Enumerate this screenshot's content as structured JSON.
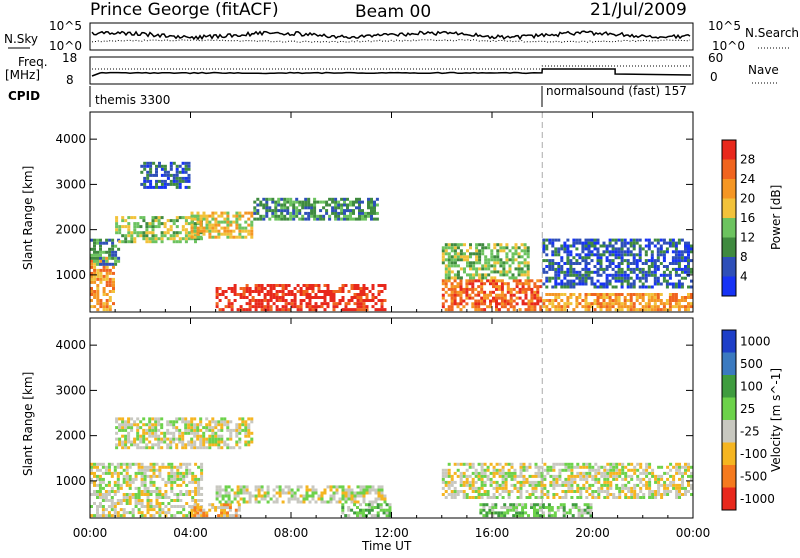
{
  "header": {
    "station": "Prince George (fitACF)",
    "beam": "Beam 00",
    "date": "21/Jul/2009"
  },
  "top_panels": {
    "nsky_label": "N.Sky",
    "nsky_ticks": [
      "10^5",
      "10^0"
    ],
    "nsearch_label": "N.Search",
    "nsearch_ticks": [
      "10^5",
      "10^0"
    ],
    "freq_label_1": "Freq.",
    "freq_label_2": "[MHz]",
    "freq_ticks": [
      "18",
      "8"
    ],
    "nave_label": "Nave",
    "nave_ticks": [
      "60",
      "0"
    ],
    "cpid_label": "CPID",
    "cpid_segments": [
      {
        "name": "themis 3300",
        "start_hour": 0
      },
      {
        "name": "normalsound (fast) 157",
        "start_hour": 18
      }
    ]
  },
  "chart_data": [
    {
      "type": "heatmap",
      "title": "",
      "xlabel": "Time UT",
      "ylabel": "Slant Range [km]",
      "x_range_hours": [
        0,
        24
      ],
      "ylim": [
        180,
        4600
      ],
      "x_ticks": [
        "00:00",
        "04:00",
        "08:00",
        "12:00",
        "16:00",
        "20:00",
        "00:00"
      ],
      "y_ticks": [
        1000,
        2000,
        3000,
        4000
      ],
      "colorbar": {
        "label": "Power [dB]",
        "ticks": [
          "4",
          "8",
          "12",
          "16",
          "20",
          "24",
          "28"
        ],
        "colors": [
          "#1733f5",
          "#2e4fb8",
          "#3f8a3f",
          "#6cc35f",
          "#f2c23a",
          "#f59623",
          "#f0641e",
          "#e8281c"
        ]
      },
      "mode_change_hour": 18,
      "echo_regions": [
        {
          "t0": 0.0,
          "t1": 1.0,
          "r0": 200,
          "r1": 1400,
          "level": 5
        },
        {
          "t0": 0.0,
          "t1": 1.2,
          "r0": 1200,
          "r1": 1800,
          "level": 2
        },
        {
          "t0": 1.0,
          "t1": 4.5,
          "r0": 1700,
          "r1": 2300,
          "level": 3
        },
        {
          "t0": 2.0,
          "t1": 4.0,
          "r0": 2900,
          "r1": 3500,
          "level": 1
        },
        {
          "t0": 4.0,
          "t1": 6.5,
          "r0": 1800,
          "r1": 2400,
          "level": 4
        },
        {
          "t0": 5.0,
          "t1": 11.8,
          "r0": 200,
          "r1": 800,
          "level": 7
        },
        {
          "t0": 6.5,
          "t1": 11.5,
          "r0": 2200,
          "r1": 2700,
          "level": 2
        },
        {
          "t0": 14.0,
          "t1": 18.0,
          "r0": 200,
          "r1": 900,
          "level": 6
        },
        {
          "t0": 14.0,
          "t1": 17.5,
          "r0": 900,
          "r1": 1700,
          "level": 3
        },
        {
          "t0": 18.0,
          "t1": 24.0,
          "r0": 200,
          "r1": 600,
          "level": 5
        },
        {
          "t0": 18.0,
          "t1": 24.0,
          "r0": 700,
          "r1": 1800,
          "level": 1
        }
      ]
    },
    {
      "type": "heatmap",
      "title": "",
      "xlabel": "Time UT",
      "ylabel": "Slant Range [km]",
      "x_range_hours": [
        0,
        24
      ],
      "ylim": [
        180,
        4600
      ],
      "x_ticks": [
        "00:00",
        "04:00",
        "08:00",
        "12:00",
        "16:00",
        "20:00",
        "00:00"
      ],
      "y_ticks": [
        1000,
        2000,
        3000,
        4000
      ],
      "colorbar": {
        "label": "Velocity [m s^-1]",
        "ticks": [
          "1000",
          "500",
          "100",
          "25",
          "-25",
          "-100",
          "-500",
          "-1000"
        ],
        "colors": [
          "#1e3fc8",
          "#3b7ac0",
          "#3f9c3f",
          "#6cd24a",
          "#c8c8c0",
          "#f5b520",
          "#f57a1e",
          "#e8281c"
        ]
      },
      "mode_change_hour": 18,
      "echo_regions": [
        {
          "t0": 0.0,
          "t1": 4.5,
          "r0": 200,
          "r1": 1400,
          "level": 4
        },
        {
          "t0": 1.0,
          "t1": 6.5,
          "r0": 1700,
          "r1": 2400,
          "level": 4
        },
        {
          "t0": 4.0,
          "t1": 6.0,
          "r0": 200,
          "r1": 500,
          "level": 5
        },
        {
          "t0": 5.0,
          "t1": 11.8,
          "r0": 500,
          "r1": 900,
          "level": 4
        },
        {
          "t0": 10.0,
          "t1": 12.0,
          "r0": 200,
          "r1": 500,
          "level": 3
        },
        {
          "t0": 14.0,
          "t1": 24.0,
          "r0": 600,
          "r1": 1400,
          "level": 4
        },
        {
          "t0": 15.5,
          "t1": 20.0,
          "r0": 200,
          "r1": 500,
          "level": 3
        }
      ]
    }
  ]
}
